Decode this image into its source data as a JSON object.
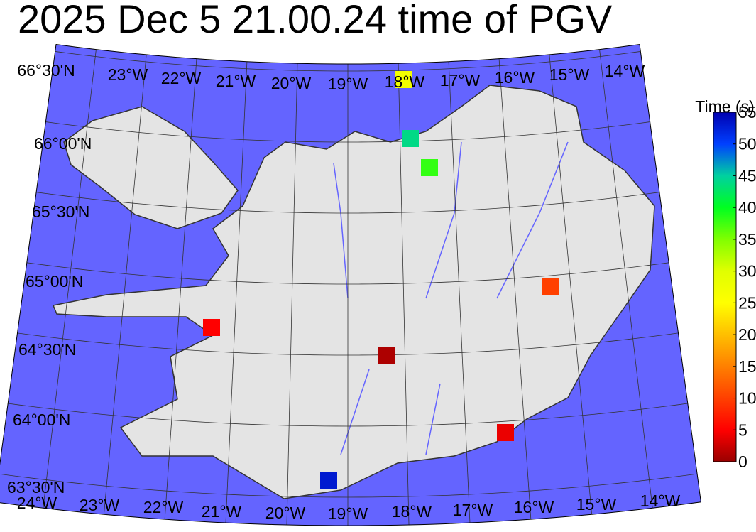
{
  "title": "2025 Dec 5 21.00.24 time of PGV",
  "top_lon_labels": [
    "66°30'N",
    "23°W",
    "22°W",
    "21°W",
    "20°W",
    "19°W",
    "18°W",
    "17°W",
    "16°W",
    "15°W",
    "14°W"
  ],
  "bottom_lon_labels": [
    "24°W",
    "23°W",
    "22°W",
    "21°W",
    "20°W",
    "19°W",
    "18°W",
    "17°W",
    "16°W",
    "15°W",
    "14°W"
  ],
  "lat_labels": [
    "66°00'N",
    "65°30'N",
    "65°00'N",
    "64°30'N",
    "64°00'N",
    "63°30'N"
  ],
  "colorbar": {
    "label": "Time (s)",
    "clim": [
      0,
      55
    ],
    "ticks": [
      0,
      5,
      10,
      15,
      20,
      25,
      30,
      35,
      40,
      45,
      50,
      55
    ],
    "colors": [
      "#990000",
      "#ff0000",
      "#ff4000",
      "#ff8000",
      "#ffbf00",
      "#ffff00",
      "#e0ff00",
      "#80ff00",
      "#00ff20",
      "#00d0a0",
      "#0040ff",
      "#0000b0"
    ]
  },
  "station_times": [
    27,
    44,
    38,
    10,
    5,
    1,
    4,
    53
  ]
}
